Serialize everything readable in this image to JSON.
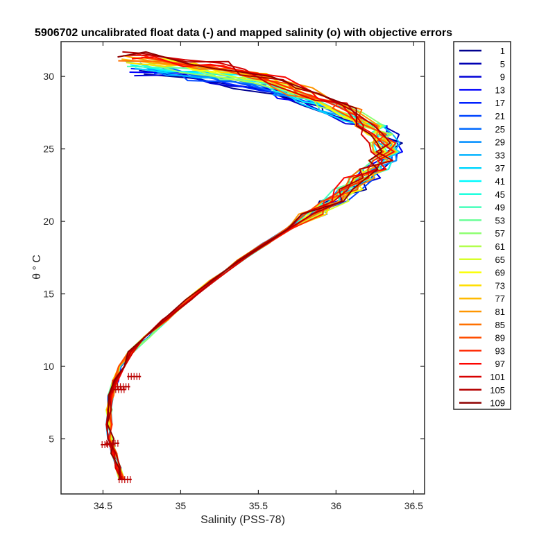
{
  "chart_data": {
    "type": "line",
    "title": "5906702 uncalibrated float data (-) and mapped salinity (o) with objective errors",
    "xlabel": "Salinity (PSS-78)",
    "ylabel": "θ ° C",
    "xlim": [
      34.23,
      36.57
    ],
    "ylim": [
      1.2,
      32.4
    ],
    "x_ticks": [
      34.5,
      35,
      35.5,
      36,
      36.5
    ],
    "y_ticks": [
      5,
      10,
      15,
      20,
      25,
      30
    ],
    "grid": false,
    "legend_position": "outside-right",
    "colormap": "jet",
    "series": [
      {
        "name": "1",
        "color": "#00008f"
      },
      {
        "name": "5",
        "color": "#0000b4"
      },
      {
        "name": "9",
        "color": "#0000d8"
      },
      {
        "name": "13",
        "color": "#0000fd"
      },
      {
        "name": "17",
        "color": "#0020ff"
      },
      {
        "name": "21",
        "color": "#0045ff"
      },
      {
        "name": "25",
        "color": "#0069ff"
      },
      {
        "name": "29",
        "color": "#008eff"
      },
      {
        "name": "33",
        "color": "#00b2ff"
      },
      {
        "name": "37",
        "color": "#00d7ff"
      },
      {
        "name": "41",
        "color": "#00fbff"
      },
      {
        "name": "45",
        "color": "#20ffdf"
      },
      {
        "name": "49",
        "color": "#45ffba"
      },
      {
        "name": "53",
        "color": "#69ff96"
      },
      {
        "name": "57",
        "color": "#8eff71"
      },
      {
        "name": "61",
        "color": "#b2ff4d"
      },
      {
        "name": "65",
        "color": "#d7ff28"
      },
      {
        "name": "69",
        "color": "#fbff04"
      },
      {
        "name": "73",
        "color": "#ffdf00"
      },
      {
        "name": "77",
        "color": "#ffba00"
      },
      {
        "name": "81",
        "color": "#ff9600"
      },
      {
        "name": "85",
        "color": "#ff7100"
      },
      {
        "name": "89",
        "color": "#ff4d00"
      },
      {
        "name": "93",
        "color": "#ff2800"
      },
      {
        "name": "97",
        "color": "#fd0400"
      },
      {
        "name": "101",
        "color": "#d80000"
      },
      {
        "name": "105",
        "color": "#b40000"
      },
      {
        "name": "109",
        "color": "#8f0000"
      }
    ],
    "profile_shape": {
      "x": [
        34.62,
        34.6,
        34.57,
        34.55,
        34.54,
        34.54,
        34.55,
        34.58,
        34.62,
        34.68,
        34.78,
        34.9,
        35.05,
        35.2,
        35.38,
        35.55,
        35.7,
        35.85,
        35.98,
        36.08,
        36.17,
        36.24,
        36.3,
        36.33,
        36.32,
        36.28,
        36.22,
        36.1,
        35.95,
        35.8,
        35.65,
        35.5,
        35.3,
        35.1,
        34.9,
        34.7
      ],
      "y": [
        2.2,
        3.0,
        4.0,
        5.0,
        6.0,
        7.0,
        8.0,
        9.0,
        10.0,
        11.0,
        12.0,
        13.2,
        14.6,
        15.9,
        17.3,
        18.5,
        19.5,
        20.5,
        21.4,
        22.2,
        23.0,
        23.6,
        24.2,
        24.8,
        25.4,
        26.0,
        26.6,
        27.3,
        28.0,
        28.6,
        29.2,
        29.7,
        30.1,
        30.4,
        30.7,
        30.9
      ]
    },
    "mapped_error_bars": [
      {
        "x": 34.64,
        "y": 2.2
      },
      {
        "x": 34.53,
        "y": 4.6
      },
      {
        "x": 34.56,
        "y": 4.7
      },
      {
        "x": 34.6,
        "y": 8.4
      },
      {
        "x": 34.63,
        "y": 8.6
      },
      {
        "x": 34.7,
        "y": 9.3
      }
    ]
  }
}
